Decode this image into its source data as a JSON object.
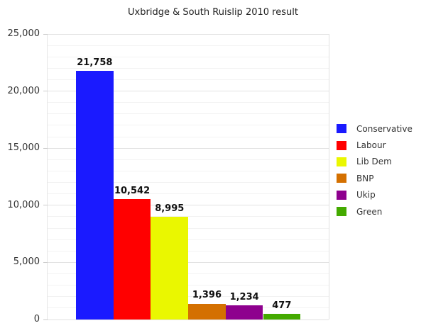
{
  "chart_data": {
    "type": "bar",
    "title": "Uxbridge & South Ruislip 2010 result",
    "xlabel": "",
    "ylabel": "",
    "ylim": [
      0,
      25000
    ],
    "yticks": [
      "0",
      "5,000",
      "10,000",
      "15,000",
      "20,000",
      "25,000"
    ],
    "grid": true,
    "legend_position": "right",
    "categories": [
      "Conservative",
      "Labour",
      "Lib Dem",
      "BNP",
      "Ukip",
      "Green"
    ],
    "values": [
      21758,
      10542,
      8995,
      1396,
      1234,
      477
    ],
    "value_labels": [
      "21,758",
      "10,542",
      "8,995",
      "1,396",
      "1,234",
      "477"
    ],
    "colors": [
      "#1a1aff",
      "#ff0000",
      "#eaf700",
      "#d47000",
      "#8e008e",
      "#44aa00"
    ]
  },
  "legend": {
    "items": [
      {
        "label": "Conservative",
        "color": "#1a1aff"
      },
      {
        "label": "Labour",
        "color": "#ff0000"
      },
      {
        "label": "Lib Dem",
        "color": "#eaf700"
      },
      {
        "label": "BNP",
        "color": "#d47000"
      },
      {
        "label": "Ukip",
        "color": "#8e008e"
      },
      {
        "label": "Green",
        "color": "#44aa00"
      }
    ]
  }
}
